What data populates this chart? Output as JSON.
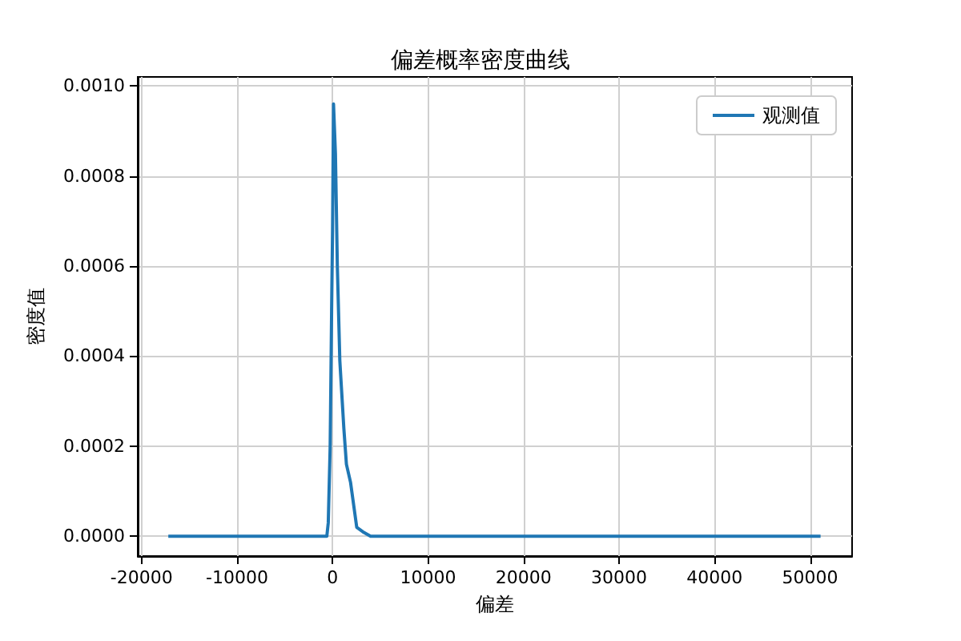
{
  "chart_data": {
    "type": "line",
    "title": "偏差概率密度曲线",
    "xlabel": "偏差",
    "ylabel": "密度值",
    "xlim": [
      -20400,
      54400
    ],
    "xticks": [
      -20000,
      -10000,
      0,
      10000,
      20000,
      30000,
      40000,
      50000
    ],
    "ylim": [
      -4.4e-05,
      0.00102
    ],
    "yticks": [
      {
        "value": 0,
        "label": "0.0000"
      },
      {
        "value": 0.0002,
        "label": "0.0002"
      },
      {
        "value": 0.0004,
        "label": "0.0004"
      },
      {
        "value": 0.0006,
        "label": "0.0006"
      },
      {
        "value": 0.0008,
        "label": "0.0008"
      },
      {
        "value": 0.001,
        "label": "0.0010"
      }
    ],
    "grid": true,
    "legend": "top right",
    "series": [
      {
        "name": "观测值",
        "color": "#1f77b4",
        "x": [
          -17200,
          -5000,
          -1000,
          -600,
          -450,
          -250,
          -100,
          0,
          100,
          300,
          500,
          760,
          1180,
          1450,
          1880,
          2530,
          3170,
          3980,
          10000,
          30000,
          51100
        ],
        "values": [
          0,
          0,
          0,
          0,
          3e-05,
          0.0002,
          0.0005,
          0.00068,
          0.00096,
          0.00085,
          0.0006,
          0.00039,
          0.00024,
          0.00016,
          0.00012,
          2e-05,
          1e-05,
          0,
          0,
          0,
          0
        ]
      }
    ]
  }
}
